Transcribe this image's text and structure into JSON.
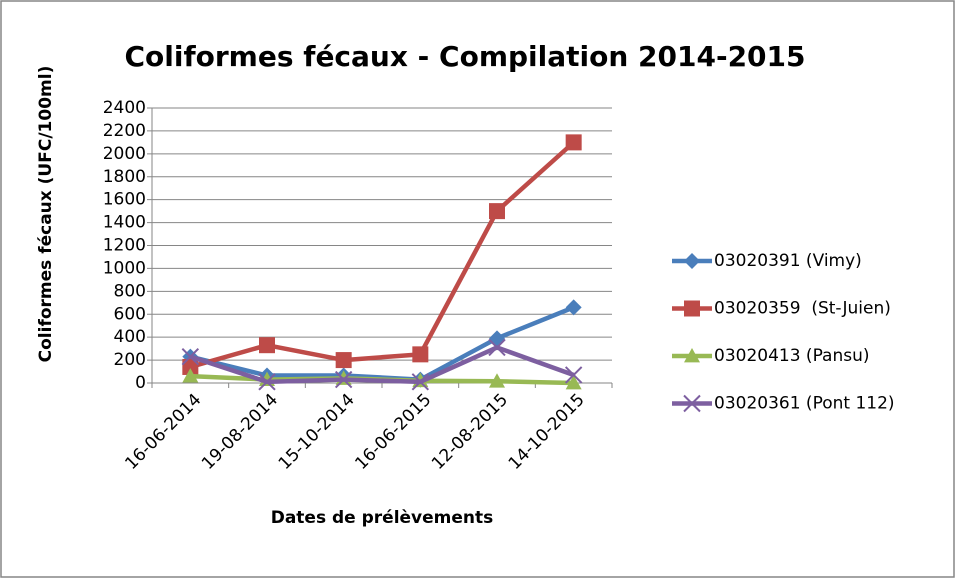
{
  "chart_data": {
    "type": "line",
    "title": "Coliformes fécaux - Compilation 2014-2015",
    "x_label": "Dates de prélèvements",
    "y_label": "Coliformes fécaux (UFC/100ml)",
    "categories": [
      "16-06-2014",
      "19-08-2014",
      "15-10-2014",
      "16-06-2015",
      "12-08-2015",
      "14-10-2015"
    ],
    "series": [
      {
        "name": "03020391 (Vimy)",
        "color": "#4a7ebb",
        "marker": "diamond",
        "values": [
          230,
          65,
          65,
          30,
          390,
          660
        ]
      },
      {
        "name": "03020359  (St-Juien)",
        "color": "#be4b48",
        "marker": "square",
        "values": [
          140,
          330,
          200,
          250,
          1500,
          2100
        ]
      },
      {
        "name": "03020413 (Pansu)",
        "color": "#98b954",
        "marker": "triangle",
        "values": [
          60,
          30,
          40,
          20,
          15,
          0
        ]
      },
      {
        "name": "03020361 (Pont 112)",
        "color": "#7d5fa0",
        "marker": "x",
        "values": [
          230,
          10,
          30,
          10,
          310,
          70
        ]
      }
    ],
    "ylim": [
      0,
      2400
    ],
    "yticks": [
      0,
      200,
      400,
      600,
      800,
      1000,
      1200,
      1400,
      1600,
      1800,
      2000,
      2200,
      2400
    ],
    "grid": true,
    "legend": "right"
  }
}
